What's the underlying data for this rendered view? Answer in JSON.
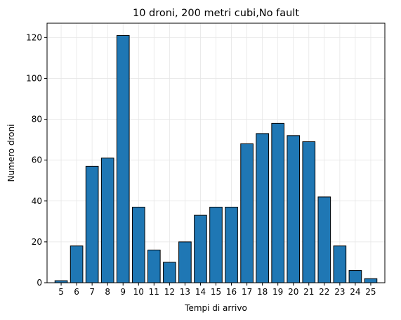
{
  "chart_data": {
    "type": "bar",
    "title": "10 droni, 200 metri cubi,No fault",
    "xlabel": "Tempi di arrivo",
    "ylabel": "Numero droni",
    "categories": [
      "5",
      "6",
      "7",
      "8",
      "9",
      "10",
      "11",
      "12",
      "13",
      "14",
      "15",
      "16",
      "17",
      "18",
      "19",
      "20",
      "21",
      "22",
      "23",
      "24",
      "25"
    ],
    "values": [
      1,
      18,
      57,
      61,
      121,
      37,
      16,
      10,
      20,
      33,
      37,
      37,
      68,
      73,
      78,
      72,
      69,
      42,
      18,
      6,
      2
    ],
    "yticks": [
      0,
      20,
      40,
      60,
      80,
      100,
      120
    ],
    "ylim": [
      0,
      127
    ],
    "grid": true,
    "colors": {
      "bar": "#1f77b4",
      "edge": "#000000",
      "grid": "#e6e6e6"
    }
  }
}
